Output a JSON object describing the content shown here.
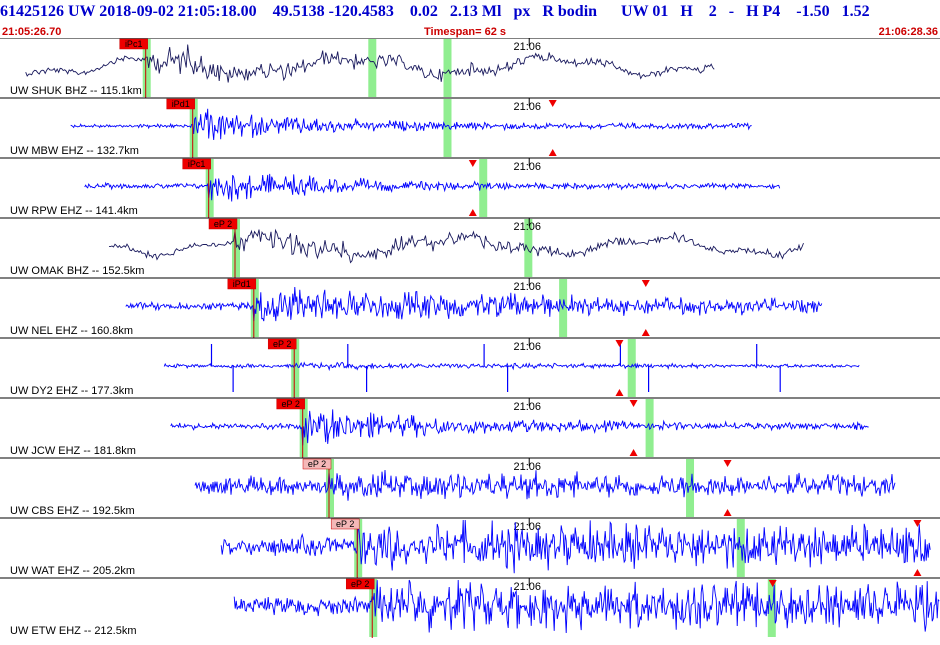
{
  "header": {
    "title": "61425126 UW 2018-09-02 21:05:18.00    49.5138 -120.4583    0.02   2.13 Ml   px   R bodin      UW 01   H    2   -   H P4    -1.50   1.52",
    "start_time": "21:05:26.70",
    "timespan": "Timespan=  62 s",
    "end_time": "21:06:28.36"
  },
  "colors": {
    "trace_blue": "#0000ff",
    "trace_dark": "#1a1a5e",
    "title_blue": "#0000cc",
    "header_red": "#cc0000",
    "pick_red": "#ee0000",
    "pick_pink": "#f4b8b8",
    "window_green": "#90ee90"
  },
  "panels": [
    {
      "label": "UW SHUK BHZ -- 115.1km",
      "pick_label": "iPc1",
      "tick_label": "21:06",
      "style": "dark",
      "amp": 0.55,
      "decay": 0.8,
      "pick": 0.155,
      "pick_color": "red",
      "greens": [
        0.155,
        0.395,
        0.475
      ],
      "onset_noise": 0.1,
      "end": 0.76,
      "tri_top": null,
      "tri_bot": null
    },
    {
      "label": "UW MBW EHZ -- 132.7km",
      "pick_label": "iPd1",
      "tick_label": "21:06",
      "style": "blue",
      "amp": 0.6,
      "decay": 1.6,
      "pick": 0.205,
      "pick_color": "red",
      "greens": [
        0.205,
        0.475
      ],
      "onset_noise": 0.06,
      "end": 0.8,
      "tri_top": 0.588,
      "tri_bot": 0.588
    },
    {
      "label": "UW RPW EHZ -- 141.4km",
      "pick_label": "iPc1",
      "tick_label": "21:06",
      "style": "blue",
      "amp": 0.55,
      "decay": 1.4,
      "pick": 0.222,
      "pick_color": "red",
      "greens": [
        0.222,
        0.513
      ],
      "onset_noise": 0.08,
      "end": 0.83,
      "tri_top": 0.503,
      "tri_bot": 0.503
    },
    {
      "label": "UW OMAK BHZ -- 152.5km",
      "pick_label": "eP 2",
      "tick_label": "21:06",
      "style": "dark",
      "amp": 0.45,
      "decay": 0.6,
      "pick": 0.25,
      "pick_color": "red",
      "greens": [
        0.25,
        0.561
      ],
      "onset_noise": 0.1,
      "end": 0.855,
      "tri_top": null,
      "tri_bot": null
    },
    {
      "label": "UW NEL EHZ -- 160.8km",
      "pick_label": "iPd1",
      "tick_label": "21:06",
      "style": "blue",
      "amp": 0.7,
      "decay": 0.5,
      "pick": 0.27,
      "pick_color": "red",
      "greens": [
        0.27,
        0.598
      ],
      "onset_noise": 0.12,
      "end": 0.875,
      "tri_top": 0.687,
      "tri_bot": 0.687
    },
    {
      "label": "UW DY2 EHZ -- 177.3km",
      "pick_label": "eP 2",
      "tick_label": "21:06",
      "style": "blue",
      "amp": 0.12,
      "decay": 0.3,
      "pick": 0.313,
      "pick_color": "red",
      "greens": [
        0.313,
        0.671
      ],
      "onset_noise": 0.06,
      "end": 0.915,
      "tri_top": 0.659,
      "tri_bot": 0.659,
      "spikes": true
    },
    {
      "label": "UW JCW EHZ -- 181.8km",
      "pick_label": "eP 2",
      "tick_label": "21:06",
      "style": "blue",
      "amp": 0.65,
      "decay": 1.2,
      "pick": 0.322,
      "pick_color": "red",
      "greens": [
        0.322,
        0.69
      ],
      "onset_noise": 0.1,
      "end": 0.925,
      "tri_top": 0.674,
      "tri_bot": 0.674
    },
    {
      "label": "UW CBS EHZ -- 192.5km",
      "pick_label": "eP 2",
      "tick_label": "21:06",
      "style": "blue",
      "amp": 0.5,
      "decay": 0.1,
      "pick": 0.35,
      "pick_color": "pink",
      "greens": [
        0.35,
        0.733
      ],
      "onset_noise": 0.28,
      "end": 0.953,
      "tri_top": 0.774,
      "tri_bot": 0.774
    },
    {
      "label": "UW WAT EHZ -- 205.2km",
      "pick_label": "eP 2",
      "tick_label": "21:06",
      "style": "blue",
      "amp": 0.8,
      "decay": 0.05,
      "pick": 0.38,
      "pick_color": "pink",
      "greens": [
        0.38,
        0.787
      ],
      "onset_noise": 0.3,
      "end": 0.99,
      "tri_top": 0.976,
      "tri_bot": 0.976
    },
    {
      "label": "UW ETW EHZ -- 212.5km",
      "pick_label": "eP 2",
      "tick_label": "21:06",
      "style": "blue",
      "amp": 0.85,
      "decay": 0.05,
      "pick": 0.396,
      "pick_color": "red",
      "greens": [
        0.396,
        0.82
      ],
      "onset_noise": 0.28,
      "end": 1.0,
      "tri_top": 0.822,
      "tri_bot": null
    }
  ]
}
